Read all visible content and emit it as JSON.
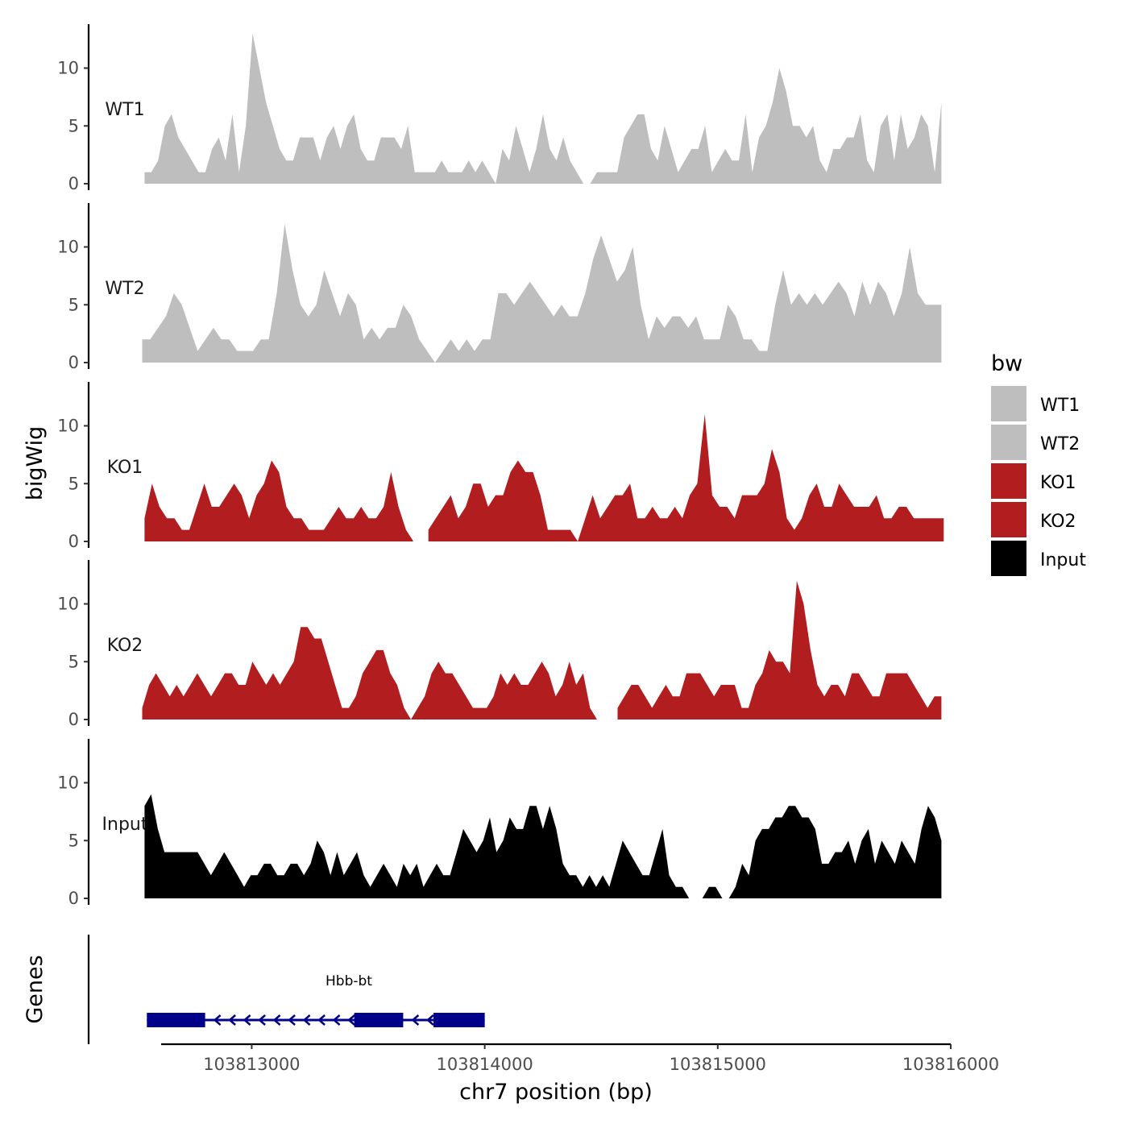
{
  "chart_data": {
    "type": "area",
    "ylabel": "bigWig",
    "xlabel": "chr7 position (bp)",
    "xlim": [
      103812300,
      103816000
    ],
    "x_ticks": [
      103813000,
      103814000,
      103815000,
      103816000
    ],
    "x_tick_labels": [
      "103813000",
      "103814000",
      "103815000",
      "103816000"
    ],
    "ylim": [
      0,
      13.5
    ],
    "y_ticks": [
      0,
      5,
      10
    ],
    "y_tick_labels": [
      "0",
      "5",
      "10"
    ],
    "legend": {
      "title": "bw",
      "position": "right",
      "entries": [
        {
          "label": "WT1",
          "color": "#bebebe"
        },
        {
          "label": "WT2",
          "color": "#bebebe"
        },
        {
          "label": "KO1",
          "color": "#b21d1f"
        },
        {
          "label": "KO2",
          "color": "#b21d1f"
        },
        {
          "label": "Input",
          "color": "#000000"
        }
      ]
    },
    "tracks": [
      {
        "name": "WT1",
        "color": "#bebebe",
        "x_start": 103812540,
        "x_end": 103815960,
        "values": [
          1,
          1,
          2,
          5,
          6,
          4,
          3,
          2,
          1,
          1,
          3,
          4,
          2,
          6,
          1,
          5,
          13,
          10,
          7,
          5,
          3,
          2,
          2,
          4,
          4,
          4,
          2,
          4,
          5,
          3,
          5,
          6,
          3,
          2,
          2,
          4,
          4,
          4,
          3,
          5,
          1,
          1,
          1,
          1,
          2,
          1,
          1,
          1,
          2,
          1,
          2,
          1,
          0,
          3,
          2,
          5,
          3,
          1,
          3,
          6,
          3,
          2,
          4,
          2,
          1,
          0,
          0,
          1,
          1,
          1,
          1,
          4,
          5,
          6,
          6,
          3,
          2,
          5,
          3,
          1,
          2,
          3,
          3,
          5,
          1,
          2,
          3,
          2,
          2,
          6,
          1,
          4,
          5,
          7,
          10,
          8,
          5,
          5,
          4,
          5,
          2,
          1,
          3,
          3,
          4,
          4,
          6,
          2,
          1,
          5,
          6,
          2,
          6,
          3,
          4,
          6,
          5,
          1,
          7
        ]
      },
      {
        "name": "WT2",
        "color": "#bebebe",
        "x_start": 103812530,
        "x_end": 103815960,
        "values": [
          2,
          2,
          3,
          4,
          6,
          5,
          3,
          1,
          2,
          3,
          2,
          2,
          1,
          1,
          1,
          2,
          2,
          6,
          12,
          8,
          5,
          4,
          5,
          8,
          6,
          4,
          6,
          5,
          2,
          3,
          2,
          3,
          3,
          5,
          4,
          2,
          1,
          0,
          1,
          2,
          1,
          2,
          1,
          2,
          2,
          6,
          6,
          5,
          6,
          7,
          6,
          5,
          4,
          5,
          4,
          4,
          6,
          9,
          11,
          9,
          7,
          8,
          10,
          5,
          2,
          4,
          3,
          4,
          4,
          3,
          4,
          2,
          2,
          2,
          5,
          4,
          2,
          2,
          1,
          1,
          5,
          8,
          5,
          6,
          5,
          6,
          5,
          6,
          7,
          6,
          4,
          7,
          5,
          7,
          6,
          4,
          6,
          10,
          6,
          5,
          5,
          5
        ]
      },
      {
        "name": "KO1",
        "color": "#b21d1f",
        "x_start": 103812540,
        "x_end": 103815970,
        "values": [
          2,
          5,
          3,
          2,
          2,
          1,
          1,
          3,
          5,
          3,
          3,
          4,
          5,
          4,
          2,
          4,
          5,
          7,
          6,
          3,
          2,
          2,
          1,
          1,
          1,
          2,
          3,
          2,
          2,
          3,
          2,
          2,
          3,
          6,
          3,
          1,
          0,
          null,
          1,
          2,
          3,
          4,
          2,
          3,
          5,
          5,
          3,
          4,
          4,
          6,
          7,
          6,
          6,
          4,
          1,
          1,
          1,
          1,
          0,
          2,
          4,
          2,
          3,
          4,
          4,
          5,
          2,
          2,
          3,
          2,
          2,
          3,
          2,
          4,
          5,
          11,
          4,
          3,
          3,
          2,
          4,
          4,
          4,
          5,
          8,
          6,
          2,
          1,
          2,
          4,
          5,
          3,
          3,
          5,
          4,
          3,
          3,
          3,
          4,
          2,
          2,
          3,
          3,
          2,
          2,
          2,
          2,
          2
        ]
      },
      {
        "name": "KO2",
        "color": "#b21d1f",
        "x_start": 103812530,
        "x_end": 103815960,
        "values": [
          1,
          3,
          4,
          3,
          2,
          3,
          2,
          3,
          4,
          3,
          2,
          3,
          4,
          4,
          3,
          3,
          5,
          4,
          3,
          4,
          3,
          4,
          5,
          8,
          8,
          7,
          7,
          5,
          3,
          1,
          1,
          2,
          4,
          5,
          6,
          6,
          4,
          3,
          1,
          0,
          1,
          2,
          4,
          5,
          4,
          4,
          3,
          2,
          1,
          1,
          1,
          2,
          4,
          3,
          4,
          3,
          3,
          4,
          5,
          4,
          2,
          3,
          5,
          3,
          4,
          1,
          0,
          null,
          null,
          1,
          2,
          3,
          3,
          2,
          1,
          2,
          3,
          2,
          2,
          4,
          4,
          4,
          3,
          2,
          3,
          3,
          3,
          1,
          1,
          3,
          4,
          6,
          5,
          5,
          4,
          12,
          10,
          6,
          3,
          2,
          3,
          3,
          2,
          4,
          4,
          3,
          2,
          2,
          4,
          4,
          4,
          4,
          3,
          2,
          1,
          2,
          2
        ]
      },
      {
        "name": "Input",
        "color": "#000000",
        "x_start": 103812540,
        "x_end": 103815960,
        "values": [
          8,
          9,
          6,
          4,
          4,
          4,
          4,
          4,
          4,
          3,
          2,
          3,
          4,
          3,
          2,
          1,
          2,
          2,
          3,
          3,
          2,
          2,
          3,
          3,
          2,
          3,
          5,
          4,
          2,
          4,
          2,
          3,
          4,
          2,
          1,
          2,
          3,
          2,
          1,
          3,
          2,
          3,
          1,
          2,
          3,
          2,
          2,
          4,
          6,
          5,
          4,
          5,
          7,
          4,
          5,
          7,
          6,
          6,
          8,
          8,
          6,
          8,
          6,
          3,
          2,
          2,
          1,
          2,
          1,
          2,
          1,
          3,
          5,
          4,
          3,
          2,
          2,
          4,
          6,
          2,
          1,
          1,
          0,
          0,
          0,
          1,
          1,
          0,
          0,
          1,
          3,
          2,
          5,
          6,
          6,
          7,
          7,
          8,
          8,
          7,
          7,
          6,
          3,
          3,
          4,
          4,
          5,
          3,
          5,
          6,
          3,
          5,
          4,
          3,
          5,
          4,
          3,
          6,
          8,
          7,
          5
        ]
      }
    ],
    "genes": {
      "ylabel": "Genes",
      "color": "#00008b",
      "items": [
        {
          "name": "Hbb-bt",
          "start": 103812550,
          "end": 103814000,
          "strand": "-",
          "exons": [
            [
              103812550,
              103812800
            ],
            [
              103813440,
              103813650
            ],
            [
              103813780,
              103814000
            ]
          ]
        }
      ]
    }
  }
}
